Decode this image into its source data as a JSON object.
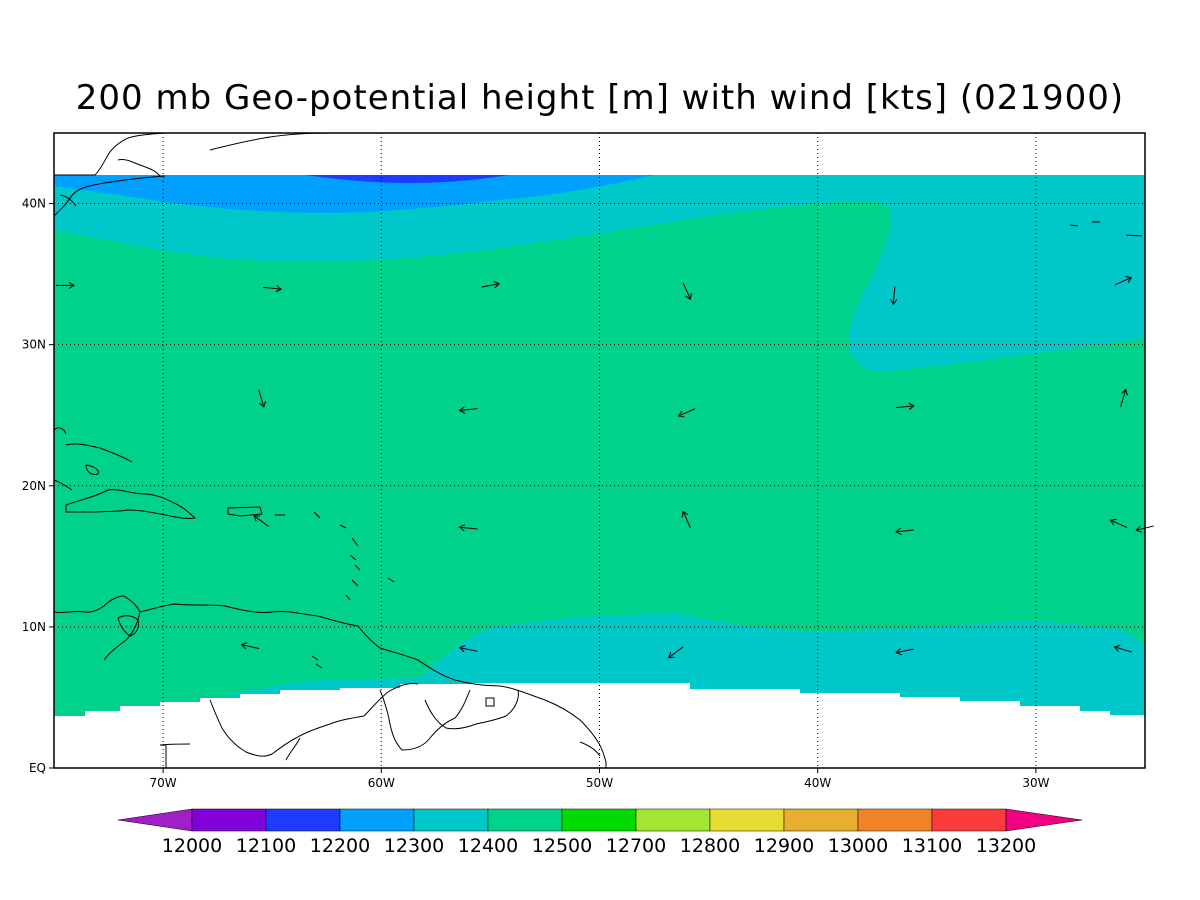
{
  "title": "200 mb Geo-potential height [m] with wind [kts] (021900)",
  "map": {
    "projection": "latlon",
    "lon_range": [
      -75,
      -25
    ],
    "lat_range": [
      0,
      45
    ],
    "lat_labels": [
      {
        "text": "EQ",
        "lat": 0
      },
      {
        "text": "10N",
        "lat": 10
      },
      {
        "text": "20N",
        "lat": 20
      },
      {
        "text": "30N",
        "lat": 30
      },
      {
        "text": "40N",
        "lat": 40
      }
    ],
    "lon_labels": [
      {
        "text": "70W",
        "lon": -70
      },
      {
        "text": "60W",
        "lon": -60
      },
      {
        "text": "50W",
        "lon": -50
      },
      {
        "text": "40W",
        "lon": -40
      },
      {
        "text": "30W",
        "lon": -30
      }
    ],
    "grid": "dotted"
  },
  "colorbar": {
    "labels": [
      "12000",
      "12100",
      "12200",
      "12300",
      "12400",
      "12500",
      "12700",
      "12800",
      "12900",
      "13000",
      "13100",
      "13200"
    ],
    "colors": [
      "#a020c8",
      "#8200dc",
      "#1e3cff",
      "#00a0ff",
      "#00c8c8",
      "#00d28c",
      "#00dc00",
      "#a0e632",
      "#e6dc32",
      "#e6af2d",
      "#f08228",
      "#fa3c3c",
      "#f00082"
    ]
  },
  "field_colors": {
    "h12200": "#1e3cff",
    "h12300": "#00a0ff",
    "h12400": "#00c8c8",
    "h12500": "#00d28c"
  },
  "wind_vectors": [
    {
      "lon": -74.5,
      "lat": 34.2,
      "u": 1,
      "v": 0
    },
    {
      "lon": -65,
      "lat": 34,
      "u": 1,
      "v": -0.1
    },
    {
      "lon": -55,
      "lat": 34.2,
      "u": 1,
      "v": 0.2
    },
    {
      "lon": -46,
      "lat": 33.8,
      "u": 0.4,
      "v": -0.9
    },
    {
      "lon": -36.5,
      "lat": 33.5,
      "u": -0.1,
      "v": -1
    },
    {
      "lon": -26,
      "lat": 34.5,
      "u": 0.9,
      "v": 0.4
    },
    {
      "lon": -65.5,
      "lat": 26.2,
      "u": 0.3,
      "v": -1
    },
    {
      "lon": -56,
      "lat": 25.4,
      "u": -1,
      "v": -0.1
    },
    {
      "lon": -46,
      "lat": 25.2,
      "u": -0.9,
      "v": -0.4
    },
    {
      "lon": -36,
      "lat": 25.6,
      "u": 1,
      "v": 0.1
    },
    {
      "lon": -26,
      "lat": 26.2,
      "u": 0.3,
      "v": 1
    },
    {
      "lon": -65.5,
      "lat": 17.5,
      "u": -0.8,
      "v": 0.6
    },
    {
      "lon": -56,
      "lat": 17,
      "u": -1,
      "v": 0.1
    },
    {
      "lon": -46,
      "lat": 17.6,
      "u": -0.4,
      "v": 0.9
    },
    {
      "lon": -36,
      "lat": 16.8,
      "u": -1,
      "v": -0.1
    },
    {
      "lon": -26.2,
      "lat": 17.3,
      "u": -0.9,
      "v": 0.4
    },
    {
      "lon": -25,
      "lat": 17,
      "u": -0.8,
      "v": -0.2
    },
    {
      "lon": -66,
      "lat": 8.6,
      "u": -0.9,
      "v": 0.2
    },
    {
      "lon": -56,
      "lat": 8.4,
      "u": -1,
      "v": 0.2
    },
    {
      "lon": -46.5,
      "lat": 8.2,
      "u": -0.8,
      "v": -0.6
    },
    {
      "lon": -36,
      "lat": 8.3,
      "u": -1,
      "v": -0.2
    },
    {
      "lon": -26,
      "lat": 8.4,
      "u": -1,
      "v": 0.3
    }
  ]
}
